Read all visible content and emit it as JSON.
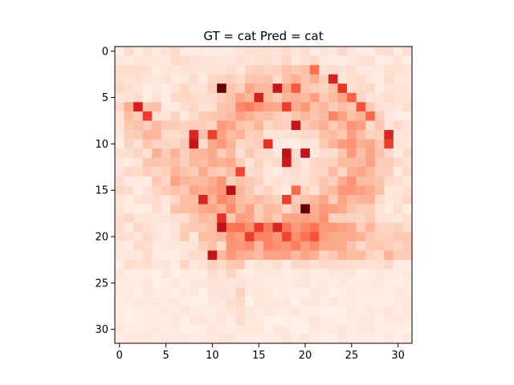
{
  "chart_data": {
    "type": "heatmap",
    "title": "GT = cat Pred = cat",
    "xlabel": "",
    "ylabel": "",
    "colormap": "Reds",
    "grid": false,
    "rows": 32,
    "cols": 32,
    "xlim": [
      -0.5,
      31.5
    ],
    "ylim": [
      31.5,
      -0.5
    ],
    "xticks": [
      0,
      5,
      10,
      15,
      20,
      25,
      30
    ],
    "yticks": [
      0,
      5,
      10,
      15,
      20,
      25,
      30
    ],
    "strong_cells": [
      {
        "row": 4,
        "col": 11,
        "value": 1.0
      },
      {
        "row": 17,
        "col": 20,
        "value": 1.0
      },
      {
        "row": 4,
        "col": 17,
        "value": 0.78
      },
      {
        "row": 5,
        "col": 15,
        "value": 0.72
      },
      {
        "row": 3,
        "col": 23,
        "value": 0.72
      },
      {
        "row": 4,
        "col": 24,
        "value": 0.65
      },
      {
        "row": 6,
        "col": 2,
        "value": 0.72
      },
      {
        "row": 7,
        "col": 3,
        "value": 0.62
      },
      {
        "row": 6,
        "col": 18,
        "value": 0.62
      },
      {
        "row": 8,
        "col": 19,
        "value": 0.78
      },
      {
        "row": 9,
        "col": 8,
        "value": 0.7
      },
      {
        "row": 9,
        "col": 10,
        "value": 0.62
      },
      {
        "row": 10,
        "col": 8,
        "value": 0.78
      },
      {
        "row": 10,
        "col": 16,
        "value": 0.66
      },
      {
        "row": 10,
        "col": 29,
        "value": 0.62
      },
      {
        "row": 9,
        "col": 29,
        "value": 0.7
      },
      {
        "row": 11,
        "col": 18,
        "value": 0.8
      },
      {
        "row": 11,
        "col": 20,
        "value": 0.8
      },
      {
        "row": 12,
        "col": 18,
        "value": 0.75
      },
      {
        "row": 13,
        "col": 13,
        "value": 0.6
      },
      {
        "row": 15,
        "col": 12,
        "value": 0.82
      },
      {
        "row": 16,
        "col": 9,
        "value": 0.7
      },
      {
        "row": 16,
        "col": 18,
        "value": 0.62
      },
      {
        "row": 18,
        "col": 11,
        "value": 0.66
      },
      {
        "row": 19,
        "col": 11,
        "value": 0.8
      },
      {
        "row": 19,
        "col": 15,
        "value": 0.62
      },
      {
        "row": 19,
        "col": 17,
        "value": 0.7
      },
      {
        "row": 20,
        "col": 14,
        "value": 0.62
      },
      {
        "row": 20,
        "col": 18,
        "value": 0.6
      },
      {
        "row": 20,
        "col": 21,
        "value": 0.56
      },
      {
        "row": 22,
        "col": 10,
        "value": 0.78
      },
      {
        "row": 6,
        "col": 26,
        "value": 0.56
      },
      {
        "row": 5,
        "col": 25,
        "value": 0.52
      },
      {
        "row": 7,
        "col": 27,
        "value": 0.5
      },
      {
        "row": 15,
        "col": 19,
        "value": 0.5
      },
      {
        "row": 2,
        "col": 21,
        "value": 0.48
      },
      {
        "row": 4,
        "col": 19,
        "value": 0.55
      }
    ]
  }
}
